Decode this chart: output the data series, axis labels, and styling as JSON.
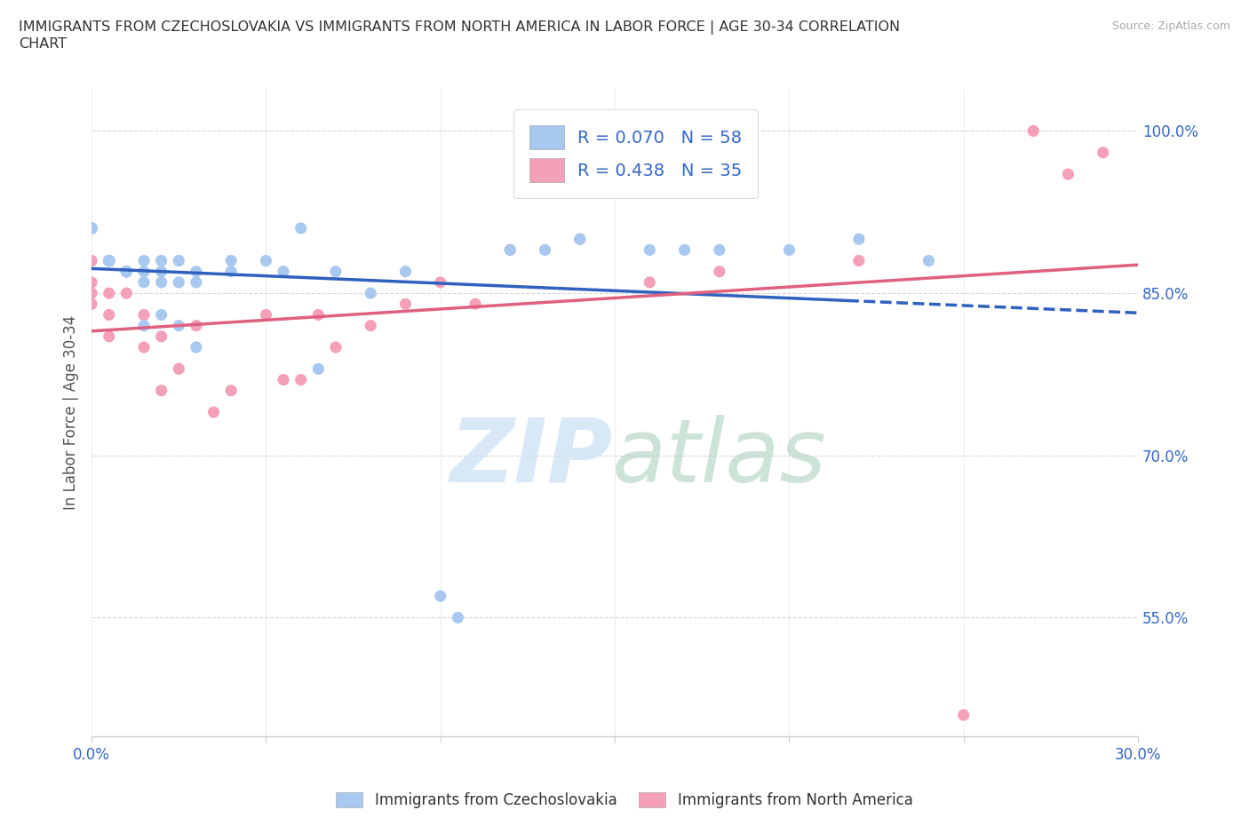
{
  "title": "IMMIGRANTS FROM CZECHOSLOVAKIA VS IMMIGRANTS FROM NORTH AMERICA IN LABOR FORCE | AGE 30-34 CORRELATION\nCHART",
  "source_text": "Source: ZipAtlas.com",
  "ylabel": "In Labor Force | Age 30-34",
  "xlim": [
    0.0,
    0.3
  ],
  "ylim": [
    0.44,
    1.04
  ],
  "xticks": [
    0.0,
    0.05,
    0.1,
    0.15,
    0.2,
    0.25,
    0.3
  ],
  "xtick_labels": [
    "0.0%",
    "",
    "",
    "",
    "",
    "",
    "30.0%"
  ],
  "yticks": [
    0.55,
    0.7,
    0.85,
    1.0
  ],
  "ytick_labels": [
    "55.0%",
    "70.0%",
    "85.0%",
    "100.0%"
  ],
  "czechoslo_color": "#a8c8f0",
  "northam_color": "#f4a0b8",
  "czechoslo_line_color": "#3060c0",
  "northam_line_color": "#e06080",
  "R_czechoslo": 0.07,
  "N_czechoslo": 58,
  "R_northam": 0.438,
  "N_northam": 35,
  "czechoslo_x": [
    0.0,
    0.0,
    0.0,
    0.0,
    0.0,
    0.0,
    0.0,
    0.0,
    0.0,
    0.0,
    0.005,
    0.005,
    0.005,
    0.005,
    0.005,
    0.005,
    0.005,
    0.005,
    0.005,
    0.01,
    0.01,
    0.01,
    0.01,
    0.01,
    0.015,
    0.015,
    0.015,
    0.02,
    0.02,
    0.02,
    0.025,
    0.025,
    0.03,
    0.03,
    0.04,
    0.04,
    0.05,
    0.055,
    0.06,
    0.065,
    0.07,
    0.08,
    0.09,
    0.1,
    0.105,
    0.12,
    0.13,
    0.14,
    0.16,
    0.17,
    0.18,
    0.2,
    0.22,
    0.24,
    0.015,
    0.02,
    0.025,
    0.03
  ],
  "czechoslo_y": [
    0.91,
    0.91,
    0.91,
    0.91,
    0.91,
    0.91,
    0.91,
    0.91,
    0.91,
    0.91,
    0.88,
    0.88,
    0.88,
    0.88,
    0.88,
    0.88,
    0.88,
    0.88,
    0.88,
    0.87,
    0.87,
    0.87,
    0.87,
    0.87,
    0.86,
    0.87,
    0.88,
    0.86,
    0.87,
    0.88,
    0.86,
    0.88,
    0.86,
    0.87,
    0.87,
    0.88,
    0.88,
    0.87,
    0.91,
    0.78,
    0.87,
    0.85,
    0.87,
    0.57,
    0.55,
    0.89,
    0.89,
    0.9,
    0.89,
    0.89,
    0.89,
    0.89,
    0.9,
    0.88,
    0.82,
    0.83,
    0.82,
    0.8
  ],
  "northam_x": [
    0.0,
    0.0,
    0.0,
    0.0,
    0.005,
    0.005,
    0.005,
    0.01,
    0.01,
    0.015,
    0.015,
    0.02,
    0.02,
    0.025,
    0.03,
    0.035,
    0.04,
    0.05,
    0.055,
    0.06,
    0.065,
    0.07,
    0.08,
    0.09,
    0.1,
    0.11,
    0.12,
    0.14,
    0.16,
    0.18,
    0.22,
    0.25,
    0.27,
    0.28,
    0.29
  ],
  "northam_y": [
    0.84,
    0.85,
    0.86,
    0.88,
    0.81,
    0.83,
    0.85,
    0.85,
    0.87,
    0.8,
    0.83,
    0.76,
    0.81,
    0.78,
    0.82,
    0.74,
    0.76,
    0.83,
    0.77,
    0.77,
    0.83,
    0.8,
    0.82,
    0.84,
    0.86,
    0.84,
    0.89,
    0.9,
    0.86,
    0.87,
    0.88,
    0.46,
    1.0,
    0.96,
    0.98
  ]
}
